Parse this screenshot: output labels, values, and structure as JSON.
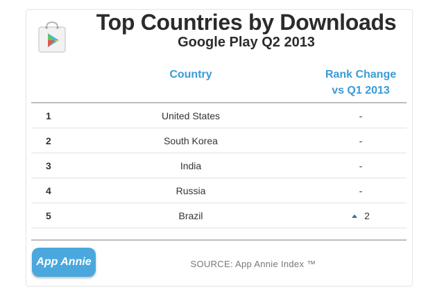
{
  "header": {
    "title": "Top Countries by Downloads",
    "subtitle": "Google Play Q2 2013",
    "logo_icon": "google-play-bag-icon"
  },
  "table": {
    "columns": {
      "country": "Country",
      "rank_change_line1": "Rank Change",
      "rank_change_line2": "vs Q1 2013"
    },
    "rows": [
      {
        "rank": "1",
        "country": "United States",
        "change": "-"
      },
      {
        "rank": "2",
        "country": "South Korea",
        "change": "-"
      },
      {
        "rank": "3",
        "country": "India",
        "change": "-"
      },
      {
        "rank": "4",
        "country": "Russia",
        "change": "-"
      },
      {
        "rank": "5",
        "country": "Brazil",
        "change": "2",
        "change_icon": "up-arrow-icon"
      }
    ]
  },
  "footer": {
    "brand": "App Annie",
    "source": "SOURCE: App Annie Index ™"
  },
  "colors": {
    "accent": "#3a9bd5",
    "badge": "#4aa8de",
    "title": "#2b2b2b"
  }
}
